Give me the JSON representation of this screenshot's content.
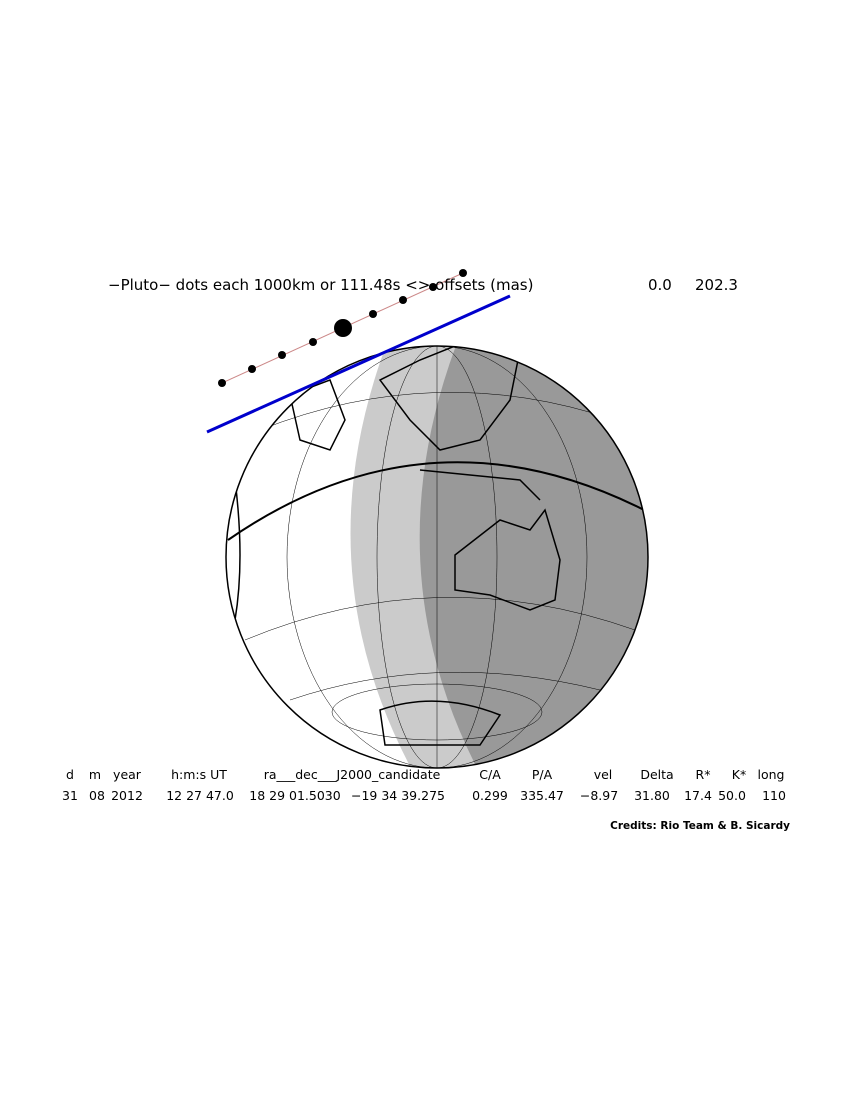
{
  "header": {
    "title": "−Pluto− dots each 1000km or 111.48s <> offsets (mas)",
    "offset_x": "0.0",
    "offset_y": "202.3"
  },
  "table": {
    "columns": [
      "d",
      "m",
      "year",
      "h:m:s UT",
      "ra___dec___J2000_candidate",
      "C/A",
      "P/A",
      "vel",
      "Delta",
      "R*",
      "K*",
      "long"
    ],
    "row": [
      "31",
      "08",
      "2012",
      "12 27 47.0",
      "18 29 01.5030",
      "−19 34 39.275",
      "0.299",
      "335.47",
      "−8.97",
      "31.80",
      "17.4",
      "50.0",
      "110"
    ]
  },
  "footer": {
    "credits": "Credits: Rio Team & B. Sicardy"
  }
}
